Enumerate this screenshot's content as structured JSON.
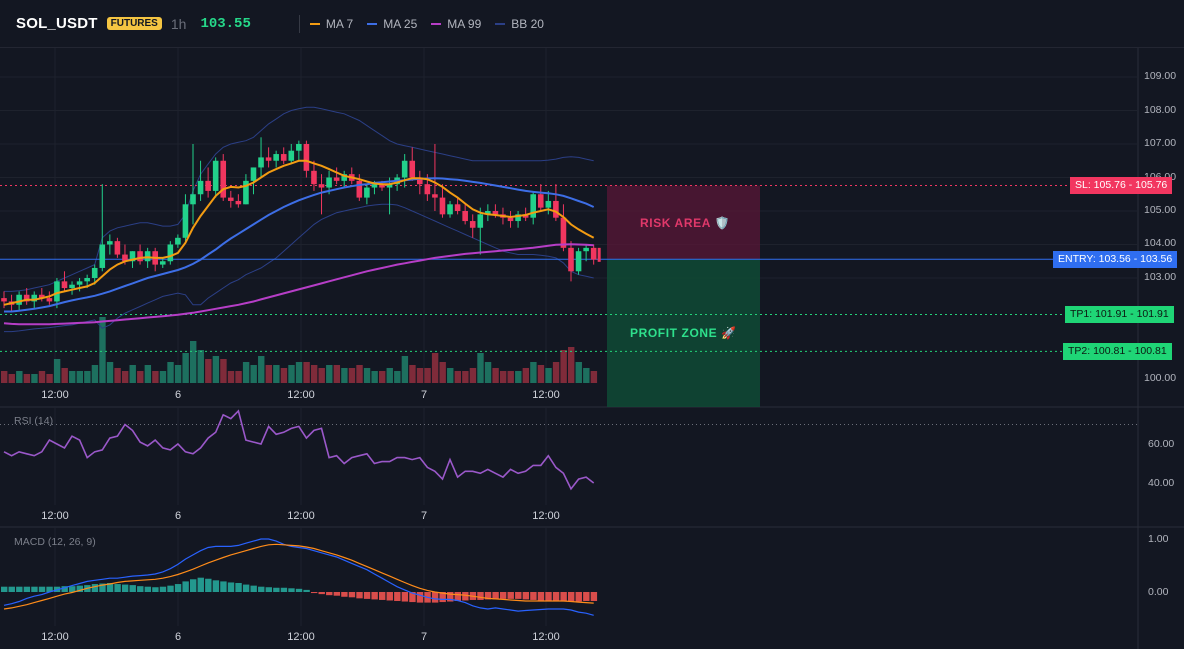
{
  "header": {
    "symbol": "SOL_USDT",
    "badge": "FUTURES",
    "timeframe": "1h",
    "price": "103.55",
    "legend": [
      {
        "label": "MA 7",
        "color": "#f39c12"
      },
      {
        "label": "MA 25",
        "color": "#3d6ee6"
      },
      {
        "label": "MA 99",
        "color": "#b63ec7"
      },
      {
        "label": "BB 20",
        "color": "#2b3f86"
      }
    ]
  },
  "price_axis": {
    "ticks": [
      "109.00",
      "108.00",
      "107.00",
      "106.00",
      "105.00",
      "104.00",
      "103.00",
      "100.00"
    ]
  },
  "time_axis": {
    "labels": [
      "12:00",
      "6",
      "12:00",
      "7",
      "12:00"
    ]
  },
  "levels": {
    "sl": {
      "value": 105.76,
      "label": "SL: 105.76",
      "price": "105.76",
      "color": "#f23660"
    },
    "entry": {
      "value": 103.56,
      "label": "ENTRY: 103.56",
      "price": "103.56",
      "color": "#2f6ef0"
    },
    "tp1": {
      "value": 101.91,
      "label": "TP1: 101.91",
      "price": "101.91",
      "color": "#22d37a"
    },
    "tp2": {
      "value": 100.81,
      "label": "TP2: 100.81",
      "price": "100.81",
      "color": "#22d37a"
    }
  },
  "zones": {
    "risk_label": "RISK AREA 🛡️",
    "profit_label": "PROFIT ZONE 🚀"
  },
  "rsi": {
    "label": "RSI (14)",
    "ticks": [
      "60.00",
      "40.00"
    ],
    "values": [
      56,
      54,
      56,
      55,
      54,
      56,
      62,
      60,
      58,
      64,
      62,
      53,
      56,
      57,
      63,
      64,
      70,
      67,
      61,
      59,
      62,
      58,
      57,
      60,
      56,
      55,
      58,
      63,
      66,
      75,
      73,
      77,
      62,
      61,
      60,
      69,
      65,
      66,
      68,
      69,
      63,
      67,
      68,
      53,
      54,
      50,
      53,
      54,
      55,
      50,
      51,
      51,
      53,
      53,
      52,
      53,
      48,
      46,
      42,
      52,
      43,
      46,
      46,
      45,
      47,
      45,
      43,
      47,
      45,
      46,
      49,
      49,
      54,
      48,
      45,
      37,
      42,
      43,
      40
    ]
  },
  "macd": {
    "label": "MACD (12, 26, 9)",
    "ticks": [
      "1.00",
      "0.00"
    ],
    "histogram": [
      0.1,
      0.1,
      0.1,
      0.1,
      0.1,
      0.1,
      0.1,
      0.1,
      0.11,
      0.11,
      0.12,
      0.13,
      0.15,
      0.16,
      0.17,
      0.15,
      0.14,
      0.13,
      0.11,
      0.1,
      0.09,
      0.1,
      0.12,
      0.15,
      0.2,
      0.24,
      0.27,
      0.25,
      0.22,
      0.2,
      0.18,
      0.17,
      0.14,
      0.12,
      0.1,
      0.09,
      0.08,
      0.08,
      0.07,
      0.06,
      0.04,
      -0.02,
      -0.04,
      -0.06,
      -0.07,
      -0.09,
      -0.1,
      -0.12,
      -0.13,
      -0.14,
      -0.15,
      -0.16,
      -0.17,
      -0.18,
      -0.19,
      -0.2,
      -0.2,
      -0.2,
      -0.19,
      -0.18,
      -0.17,
      -0.16,
      -0.15,
      -0.15,
      -0.14,
      -0.14,
      -0.13,
      -0.13,
      -0.13,
      -0.14,
      -0.15,
      -0.16,
      -0.17,
      -0.17,
      -0.18,
      -0.18,
      -0.18,
      -0.17,
      -0.17
    ],
    "macd_line": [
      -0.25,
      -0.22,
      -0.18,
      -0.12,
      -0.08,
      -0.05,
      0.0,
      0.04,
      0.08,
      0.12,
      0.16,
      0.2,
      0.22,
      0.24,
      0.26,
      0.26,
      0.28,
      0.3,
      0.31,
      0.32,
      0.34,
      0.38,
      0.44,
      0.52,
      0.62,
      0.7,
      0.78,
      0.84,
      0.86,
      0.86,
      0.86,
      0.88,
      0.92,
      0.96,
      1.0,
      1.0,
      0.96,
      0.9,
      0.86,
      0.84,
      0.82,
      0.78,
      0.74,
      0.7,
      0.66,
      0.6,
      0.54,
      0.48,
      0.42,
      0.34,
      0.26,
      0.18,
      0.1,
      0.04,
      -0.02,
      -0.06,
      -0.1,
      -0.13,
      -0.14,
      -0.14,
      -0.16,
      -0.2,
      -0.26,
      -0.3,
      -0.32,
      -0.3,
      -0.32,
      -0.34,
      -0.36,
      -0.35,
      -0.34,
      -0.33,
      -0.32,
      -0.32,
      -0.32,
      -0.34,
      -0.38,
      -0.4,
      -0.44
    ],
    "signal_line": [
      -0.32,
      -0.3,
      -0.27,
      -0.24,
      -0.2,
      -0.16,
      -0.12,
      -0.08,
      -0.04,
      -0.01,
      0.03,
      0.07,
      0.1,
      0.13,
      0.15,
      0.18,
      0.2,
      0.21,
      0.22,
      0.23,
      0.24,
      0.26,
      0.29,
      0.33,
      0.38,
      0.43,
      0.49,
      0.55,
      0.6,
      0.65,
      0.7,
      0.74,
      0.78,
      0.82,
      0.86,
      0.89,
      0.9,
      0.89,
      0.88,
      0.87,
      0.85,
      0.82,
      0.78,
      0.74,
      0.7,
      0.65,
      0.6,
      0.54,
      0.48,
      0.42,
      0.36,
      0.3,
      0.24,
      0.18,
      0.12,
      0.07,
      0.03,
      0.0,
      -0.02,
      -0.04,
      -0.05,
      -0.06,
      -0.08,
      -0.1,
      -0.12,
      -0.13,
      -0.14,
      -0.15,
      -0.16,
      -0.17,
      -0.17,
      -0.17,
      -0.17,
      -0.17,
      -0.17,
      -0.18,
      -0.19,
      -0.2,
      -0.21
    ]
  },
  "candles": [
    {
      "o": 102.4,
      "h": 102.6,
      "l": 102.1,
      "c": 102.3
    },
    {
      "o": 102.3,
      "h": 102.5,
      "l": 102.0,
      "c": 102.2
    },
    {
      "o": 102.2,
      "h": 102.6,
      "l": 102.0,
      "c": 102.5
    },
    {
      "o": 102.5,
      "h": 102.7,
      "l": 102.2,
      "c": 102.3
    },
    {
      "o": 102.3,
      "h": 102.6,
      "l": 102.1,
      "c": 102.5
    },
    {
      "o": 102.5,
      "h": 102.7,
      "l": 102.3,
      "c": 102.4
    },
    {
      "o": 102.4,
      "h": 102.6,
      "l": 102.2,
      "c": 102.3
    },
    {
      "o": 102.3,
      "h": 103.0,
      "l": 102.1,
      "c": 102.9
    },
    {
      "o": 102.9,
      "h": 103.2,
      "l": 102.6,
      "c": 102.7
    },
    {
      "o": 102.7,
      "h": 102.9,
      "l": 102.5,
      "c": 102.8
    },
    {
      "o": 102.8,
      "h": 103.0,
      "l": 102.6,
      "c": 102.9
    },
    {
      "o": 102.9,
      "h": 103.1,
      "l": 102.7,
      "c": 103.0
    },
    {
      "o": 103.0,
      "h": 103.4,
      "l": 102.8,
      "c": 103.3
    },
    {
      "o": 103.3,
      "h": 105.8,
      "l": 103.2,
      "c": 104.0
    },
    {
      "o": 104.0,
      "h": 104.3,
      "l": 103.7,
      "c": 104.1
    },
    {
      "o": 104.1,
      "h": 104.2,
      "l": 103.6,
      "c": 103.7
    },
    {
      "o": 103.7,
      "h": 104.0,
      "l": 103.4,
      "c": 103.5
    },
    {
      "o": 103.5,
      "h": 103.8,
      "l": 103.3,
      "c": 103.8
    },
    {
      "o": 103.8,
      "h": 104.0,
      "l": 103.4,
      "c": 103.5
    },
    {
      "o": 103.5,
      "h": 103.9,
      "l": 103.3,
      "c": 103.8
    },
    {
      "o": 103.8,
      "h": 103.9,
      "l": 103.2,
      "c": 103.4
    },
    {
      "o": 103.4,
      "h": 103.6,
      "l": 103.3,
      "c": 103.5
    },
    {
      "o": 103.5,
      "h": 104.1,
      "l": 103.4,
      "c": 104.0
    },
    {
      "o": 104.0,
      "h": 104.3,
      "l": 103.9,
      "c": 104.2
    },
    {
      "o": 104.2,
      "h": 105.5,
      "l": 104.1,
      "c": 105.2
    },
    {
      "o": 105.2,
      "h": 107.0,
      "l": 104.6,
      "c": 105.5
    },
    {
      "o": 105.5,
      "h": 106.5,
      "l": 105.3,
      "c": 105.9
    },
    {
      "o": 105.9,
      "h": 106.3,
      "l": 105.4,
      "c": 105.6
    },
    {
      "o": 105.6,
      "h": 106.6,
      "l": 105.4,
      "c": 106.5
    },
    {
      "o": 106.5,
      "h": 106.7,
      "l": 105.3,
      "c": 105.4
    },
    {
      "o": 105.4,
      "h": 105.6,
      "l": 105.1,
      "c": 105.3
    },
    {
      "o": 105.3,
      "h": 105.5,
      "l": 105.1,
      "c": 105.2
    },
    {
      "o": 105.2,
      "h": 106.1,
      "l": 105.2,
      "c": 105.9
    },
    {
      "o": 105.9,
      "h": 106.3,
      "l": 105.5,
      "c": 106.3
    },
    {
      "o": 106.3,
      "h": 107.2,
      "l": 106.0,
      "c": 106.6
    },
    {
      "o": 106.6,
      "h": 106.9,
      "l": 106.3,
      "c": 106.5
    },
    {
      "o": 106.5,
      "h": 106.8,
      "l": 106.3,
      "c": 106.7
    },
    {
      "o": 106.7,
      "h": 106.9,
      "l": 106.4,
      "c": 106.5
    },
    {
      "o": 106.5,
      "h": 107.0,
      "l": 106.4,
      "c": 106.8
    },
    {
      "o": 106.8,
      "h": 107.1,
      "l": 106.5,
      "c": 107.0
    },
    {
      "o": 107.0,
      "h": 107.1,
      "l": 106.0,
      "c": 106.2
    },
    {
      "o": 106.2,
      "h": 106.5,
      "l": 105.6,
      "c": 105.8
    },
    {
      "o": 105.8,
      "h": 106.1,
      "l": 104.9,
      "c": 105.7
    },
    {
      "o": 105.7,
      "h": 106.2,
      "l": 105.5,
      "c": 106.0
    },
    {
      "o": 106.0,
      "h": 106.3,
      "l": 105.8,
      "c": 105.9
    },
    {
      "o": 105.9,
      "h": 106.2,
      "l": 105.7,
      "c": 106.1
    },
    {
      "o": 106.1,
      "h": 106.3,
      "l": 105.8,
      "c": 105.9
    },
    {
      "o": 105.9,
      "h": 106.1,
      "l": 105.3,
      "c": 105.4
    },
    {
      "o": 105.4,
      "h": 105.8,
      "l": 105.2,
      "c": 105.7
    },
    {
      "o": 105.7,
      "h": 105.9,
      "l": 105.5,
      "c": 105.8
    },
    {
      "o": 105.8,
      "h": 105.9,
      "l": 105.6,
      "c": 105.7
    },
    {
      "o": 105.7,
      "h": 106.0,
      "l": 104.9,
      "c": 105.8
    },
    {
      "o": 105.8,
      "h": 106.1,
      "l": 105.6,
      "c": 106.0
    },
    {
      "o": 106.0,
      "h": 106.7,
      "l": 105.7,
      "c": 106.5
    },
    {
      "o": 106.5,
      "h": 106.9,
      "l": 105.9,
      "c": 106.0
    },
    {
      "o": 106.0,
      "h": 106.2,
      "l": 105.5,
      "c": 105.8
    },
    {
      "o": 105.8,
      "h": 106.1,
      "l": 105.3,
      "c": 105.5
    },
    {
      "o": 105.5,
      "h": 107.0,
      "l": 105.0,
      "c": 105.4
    },
    {
      "o": 105.4,
      "h": 105.8,
      "l": 104.8,
      "c": 104.9
    },
    {
      "o": 104.9,
      "h": 105.3,
      "l": 104.8,
      "c": 105.2
    },
    {
      "o": 105.2,
      "h": 105.4,
      "l": 104.9,
      "c": 105.0
    },
    {
      "o": 105.0,
      "h": 105.2,
      "l": 104.6,
      "c": 104.7
    },
    {
      "o": 104.7,
      "h": 104.9,
      "l": 104.2,
      "c": 104.5
    },
    {
      "o": 104.5,
      "h": 105.1,
      "l": 103.7,
      "c": 104.9
    },
    {
      "o": 104.9,
      "h": 105.2,
      "l": 104.7,
      "c": 105.0
    },
    {
      "o": 105.0,
      "h": 105.2,
      "l": 104.8,
      "c": 104.9
    },
    {
      "o": 104.9,
      "h": 105.1,
      "l": 104.6,
      "c": 104.8
    },
    {
      "o": 104.8,
      "h": 105.0,
      "l": 104.5,
      "c": 104.7
    },
    {
      "o": 104.7,
      "h": 105.0,
      "l": 104.5,
      "c": 104.9
    },
    {
      "o": 104.9,
      "h": 105.1,
      "l": 104.7,
      "c": 104.8
    },
    {
      "o": 104.8,
      "h": 105.6,
      "l": 104.6,
      "c": 105.5
    },
    {
      "o": 105.5,
      "h": 105.8,
      "l": 105.0,
      "c": 105.1
    },
    {
      "o": 105.1,
      "h": 105.6,
      "l": 104.9,
      "c": 105.3
    },
    {
      "o": 105.3,
      "h": 105.8,
      "l": 104.7,
      "c": 104.8
    },
    {
      "o": 104.8,
      "h": 105.2,
      "l": 103.8,
      "c": 103.9
    },
    {
      "o": 103.9,
      "h": 104.1,
      "l": 102.9,
      "c": 103.2
    },
    {
      "o": 103.2,
      "h": 103.9,
      "l": 103.1,
      "c": 103.8
    },
    {
      "o": 103.8,
      "h": 104.0,
      "l": 103.5,
      "c": 103.9
    },
    {
      "o": 103.9,
      "h": 104.0,
      "l": 103.4,
      "c": 103.55
    }
  ],
  "volume": [
    4,
    3,
    4,
    3,
    3,
    4,
    3,
    8,
    5,
    4,
    4,
    4,
    6,
    22,
    7,
    5,
    4,
    6,
    4,
    6,
    4,
    4,
    7,
    6,
    10,
    14,
    11,
    8,
    9,
    8,
    4,
    4,
    7,
    6,
    9,
    6,
    6,
    5,
    6,
    7,
    7,
    6,
    5,
    6,
    6,
    5,
    5,
    6,
    5,
    4,
    4,
    5,
    4,
    9,
    6,
    5,
    5,
    10,
    7,
    5,
    4,
    4,
    5,
    10,
    7,
    5,
    4,
    4,
    4,
    5,
    7,
    6,
    5,
    7,
    11,
    12,
    7,
    5,
    4
  ],
  "ma7": [
    102.2,
    102.25,
    102.3,
    102.35,
    102.35,
    102.4,
    102.45,
    102.55,
    102.6,
    102.65,
    102.7,
    102.75,
    102.85,
    103.05,
    103.25,
    103.4,
    103.5,
    103.55,
    103.6,
    103.62,
    103.6,
    103.6,
    103.65,
    103.75,
    104.05,
    104.5,
    104.85,
    105.15,
    105.45,
    105.65,
    105.72,
    105.7,
    105.75,
    105.85,
    106.0,
    106.15,
    106.25,
    106.35,
    106.42,
    106.5,
    106.5,
    106.42,
    106.35,
    106.25,
    106.15,
    106.05,
    106.0,
    105.95,
    105.88,
    105.82,
    105.8,
    105.8,
    105.85,
    105.92,
    105.98,
    105.98,
    105.95,
    105.85,
    105.72,
    105.55,
    105.4,
    105.22,
    105.05,
    104.95,
    104.9,
    104.88,
    104.85,
    104.82,
    104.85,
    104.88,
    104.95,
    105.0,
    105.05,
    104.98,
    104.82,
    104.6,
    104.45,
    104.32,
    104.2
  ],
  "ma25": [
    102.0,
    102.0,
    102.02,
    102.05,
    102.08,
    102.12,
    102.16,
    102.22,
    102.28,
    102.33,
    102.38,
    102.42,
    102.47,
    102.53,
    102.6,
    102.68,
    102.76,
    102.84,
    102.92,
    103.0,
    103.06,
    103.12,
    103.18,
    103.24,
    103.32,
    103.42,
    103.55,
    103.7,
    103.85,
    104.02,
    104.18,
    104.32,
    104.46,
    104.6,
    104.74,
    104.88,
    105.0,
    105.12,
    105.22,
    105.32,
    105.4,
    105.48,
    105.55,
    105.6,
    105.65,
    105.7,
    105.74,
    105.78,
    105.8,
    105.84,
    105.86,
    105.88,
    105.9,
    105.92,
    105.94,
    105.96,
    105.97,
    105.98,
    105.97,
    105.95,
    105.93,
    105.9,
    105.87,
    105.84,
    105.8,
    105.76,
    105.72,
    105.68,
    105.64,
    105.6,
    105.57,
    105.55,
    105.53,
    105.5,
    105.45,
    105.38,
    105.3,
    105.22,
    105.12
  ],
  "ma99": [
    101.65,
    101.63,
    101.62,
    101.62,
    101.62,
    101.62,
    101.62,
    101.63,
    101.64,
    101.65,
    101.66,
    101.67,
    101.68,
    101.7,
    101.72,
    101.74,
    101.76,
    101.78,
    101.8,
    101.82,
    101.84,
    101.86,
    101.88,
    101.9,
    101.93,
    101.96,
    102.0,
    102.04,
    102.08,
    102.12,
    102.16,
    102.2,
    102.25,
    102.3,
    102.36,
    102.42,
    102.48,
    102.54,
    102.6,
    102.66,
    102.72,
    102.78,
    102.84,
    102.9,
    102.96,
    103.02,
    103.08,
    103.14,
    103.2,
    103.25,
    103.3,
    103.35,
    103.4,
    103.44,
    103.48,
    103.52,
    103.56,
    103.6,
    103.63,
    103.66,
    103.69,
    103.72,
    103.74,
    103.76,
    103.78,
    103.8,
    103.82,
    103.84,
    103.86,
    103.88,
    103.9,
    103.93,
    103.96,
    103.99,
    104.0,
    104.01,
    104.0,
    103.99,
    103.98
  ],
  "bb_upper": [
    102.6,
    102.6,
    102.62,
    102.65,
    102.7,
    102.75,
    102.8,
    102.9,
    103.0,
    103.1,
    103.2,
    103.3,
    103.4,
    104.2,
    104.4,
    104.5,
    104.55,
    104.6,
    104.65,
    104.65,
    104.6,
    104.55,
    104.55,
    104.6,
    104.9,
    105.6,
    106.1,
    106.4,
    106.7,
    106.9,
    107.0,
    107.05,
    107.1,
    107.2,
    107.4,
    107.6,
    107.75,
    107.9,
    108.0,
    108.05,
    108.1,
    108.1,
    108.05,
    108.0,
    107.95,
    107.9,
    107.8,
    107.7,
    107.55,
    107.4,
    107.25,
    107.1,
    107.0,
    106.95,
    106.9,
    106.85,
    106.8,
    106.75,
    106.7,
    106.65,
    106.6,
    106.55,
    106.5,
    106.5,
    106.5,
    106.5,
    106.5,
    106.5,
    106.5,
    106.5,
    106.5,
    106.5,
    106.52,
    106.55,
    106.6,
    106.62,
    106.6,
    106.55,
    106.5
  ],
  "bb_lower": [
    101.4,
    101.4,
    101.42,
    101.45,
    101.48,
    101.5,
    101.52,
    101.55,
    101.58,
    101.6,
    101.65,
    101.7,
    101.75,
    101.5,
    101.6,
    101.8,
    101.95,
    102.05,
    102.15,
    102.25,
    102.35,
    102.45,
    102.5,
    102.55,
    102.5,
    102.2,
    102.2,
    102.4,
    102.55,
    102.7,
    102.85,
    102.95,
    103.1,
    103.2,
    103.3,
    103.45,
    103.6,
    103.8,
    104.0,
    104.2,
    104.4,
    104.6,
    104.75,
    104.85,
    104.95,
    105.0,
    105.05,
    105.1,
    105.15,
    105.18,
    105.2,
    105.2,
    105.18,
    105.1,
    105.0,
    104.9,
    104.8,
    104.7,
    104.6,
    104.5,
    104.4,
    104.3,
    104.2,
    104.1,
    104.0,
    103.9,
    103.8,
    103.75,
    103.7,
    103.7,
    103.7,
    103.68,
    103.65,
    103.6,
    103.45,
    103.2,
    103.1,
    103.05,
    103.0
  ]
}
